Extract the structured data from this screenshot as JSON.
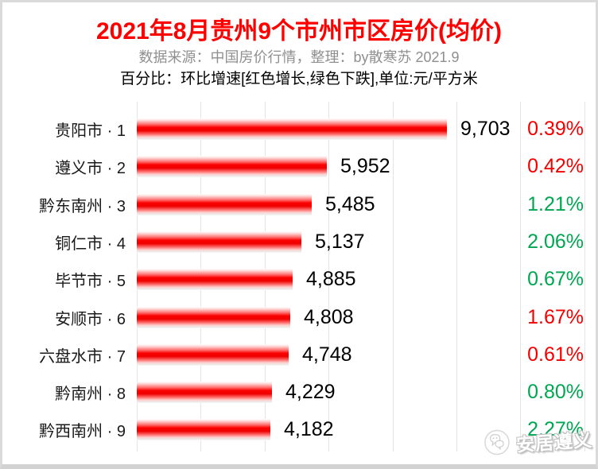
{
  "header": {
    "title": "2021年8月贵州9个市州市区房价(均价)",
    "subtitle_source": "数据来源：中国房价行情，整理：by散寒苏 2021.9",
    "subtitle_note": "百分比：环比增速[红色增长,绿色下跌],单位:元/平方米"
  },
  "watermark": {
    "label": "安居遵义",
    "icon": "chat-bubbles-logo"
  },
  "colors": {
    "title_red": "#ff0000",
    "bar_red": "#ff0000",
    "increase_red": "#f40000",
    "decrease_green": "#00a651",
    "gridline_gray": "#e5e5e5",
    "subtitle_gray": "#8f8f8f"
  },
  "chart_data": {
    "type": "bar",
    "orientation": "horizontal",
    "title": "2021年8月贵州9个市州市区房价(均价)",
    "unit": "元/平方米",
    "xlim": [
      0,
      14000
    ],
    "gridline_step": 2000,
    "grid": true,
    "legend": "none",
    "categories": [
      "贵阳市 · 1",
      "遵义市 · 2",
      "黔东南州 · 3",
      "铜仁市 · 4",
      "毕节市 · 5",
      "安顺市 · 6",
      "六盘水市 · 7",
      "黔南州 · 8",
      "黔西南州 · 9"
    ],
    "values": [
      9703,
      5952,
      5485,
      5137,
      4885,
      4808,
      4748,
      4229,
      4182
    ],
    "value_labels": [
      "9,703",
      "5,952",
      "5,485",
      "5,137",
      "4,885",
      "4,808",
      "4,748",
      "4,229",
      "4,182"
    ],
    "mom_change": [
      "0.39%",
      "0.42%",
      "1.21%",
      "2.06%",
      "0.67%",
      "1.67%",
      "0.61%",
      "0.80%",
      "2.27%"
    ],
    "mom_direction": [
      "up",
      "up",
      "down",
      "down",
      "down",
      "up",
      "up",
      "down",
      "down"
    ]
  }
}
